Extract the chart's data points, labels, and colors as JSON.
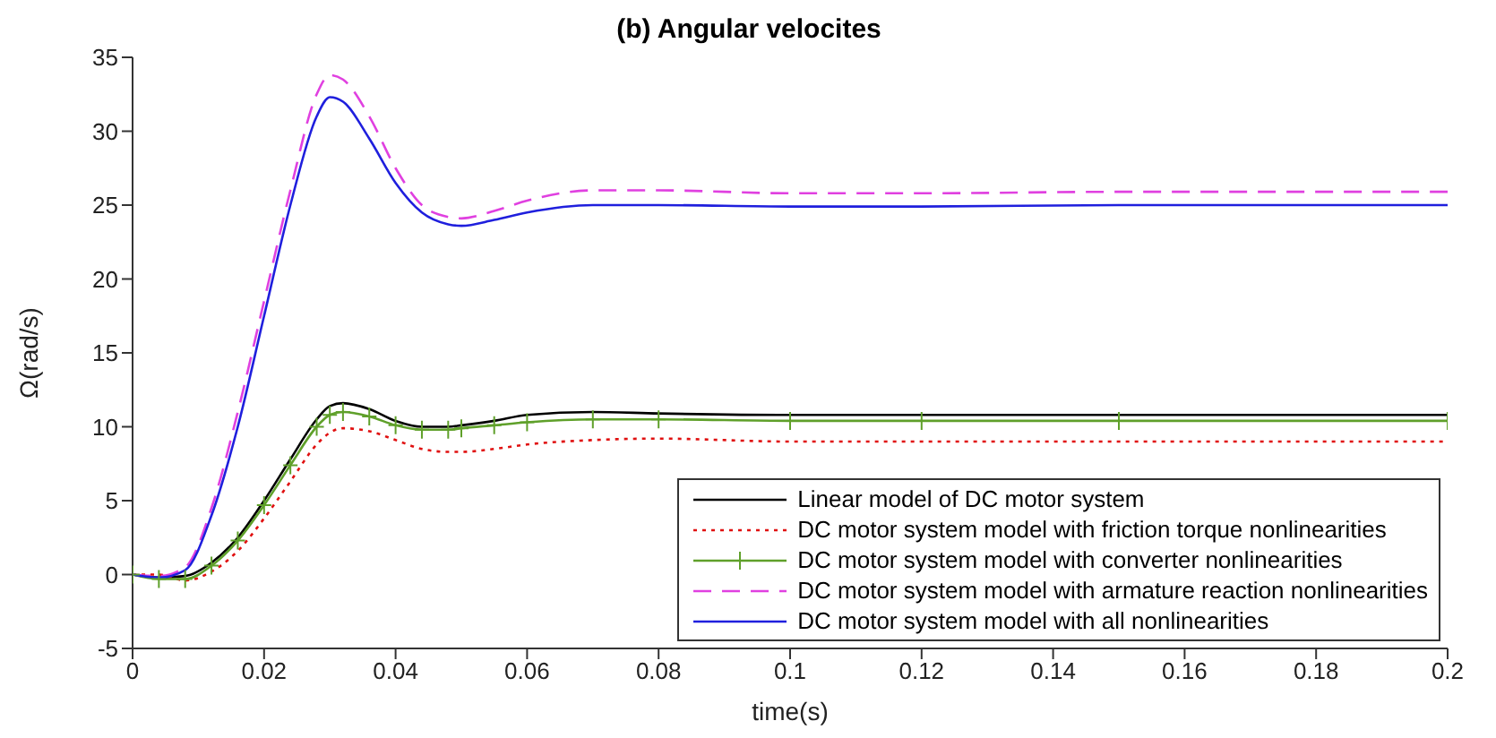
{
  "chart_data": {
    "type": "line",
    "title": "(b) Angular velocites",
    "xlabel": "time(s)",
    "ylabel": "Ω(rad/s)",
    "x": [
      0,
      0.004,
      0.008,
      0.012,
      0.016,
      0.02,
      0.024,
      0.028,
      0.03,
      0.032,
      0.036,
      0.04,
      0.044,
      0.048,
      0.05,
      0.055,
      0.06,
      0.07,
      0.08,
      0.1,
      0.12,
      0.15,
      0.2
    ],
    "series": [
      {
        "name": "Linear model of DC motor system",
        "color": "#000000",
        "line_style": "solid",
        "marker": "none",
        "values": [
          0,
          -0.2,
          -0.1,
          0.8,
          2.5,
          5,
          7.8,
          10.5,
          11.4,
          11.6,
          11.2,
          10.4,
          10,
          10,
          10.1,
          10.4,
          10.8,
          11,
          10.9,
          10.8,
          10.8,
          10.8,
          10.8
        ]
      },
      {
        "name": "DC motor system model with friction torque nonlinearities",
        "color": "#e01010",
        "line_style": "dotted",
        "marker": "none",
        "values": [
          0,
          0,
          -0.4,
          0.2,
          1.6,
          3.8,
          6.3,
          8.8,
          9.6,
          9.9,
          9.7,
          9.1,
          8.5,
          8.3,
          8.3,
          8.5,
          8.8,
          9.1,
          9.2,
          9,
          9,
          9,
          9
        ]
      },
      {
        "name": "DC motor system model with converter nonlinearities",
        "color": "#5fa02a",
        "line_style": "solid",
        "marker": "cross",
        "values": [
          0,
          -0.3,
          -0.3,
          0.6,
          2.3,
          4.7,
          7.4,
          10,
          10.8,
          11,
          10.7,
          10.1,
          9.8,
          9.8,
          9.9,
          10.1,
          10.3,
          10.5,
          10.5,
          10.4,
          10.4,
          10.4,
          10.4
        ]
      },
      {
        "name": "DC motor system model with armature reaction nonlinearities",
        "color": "#e040e0",
        "line_style": "dashed",
        "marker": "none",
        "values": [
          0,
          -0.1,
          0.5,
          4.5,
          11,
          18.5,
          26,
          32.5,
          33.8,
          33.5,
          31,
          27.5,
          25,
          24.2,
          24.1,
          24.6,
          25.3,
          26,
          26,
          25.8,
          25.8,
          25.9,
          25.9
        ]
      },
      {
        "name": "DC motor system model with all nonlinearities",
        "color": "#1f1fdd",
        "line_style": "solid",
        "marker": "none",
        "values": [
          0,
          -0.2,
          0.3,
          4,
          10,
          17.5,
          25,
          31,
          32.3,
          32,
          29.5,
          26.5,
          24.5,
          23.7,
          23.6,
          24,
          24.5,
          25,
          25,
          24.9,
          24.9,
          25,
          25
        ]
      }
    ],
    "xlim": [
      0,
      0.2
    ],
    "xticks": [
      0,
      0.02,
      0.04,
      0.06,
      0.08,
      0.1,
      0.12,
      0.14,
      0.16,
      0.18,
      0.2
    ],
    "ylim": [
      -5,
      35
    ],
    "yticks": [
      -5,
      0,
      5,
      10,
      15,
      20,
      25,
      30,
      35
    ],
    "grid": false,
    "legend": "bottom right"
  }
}
